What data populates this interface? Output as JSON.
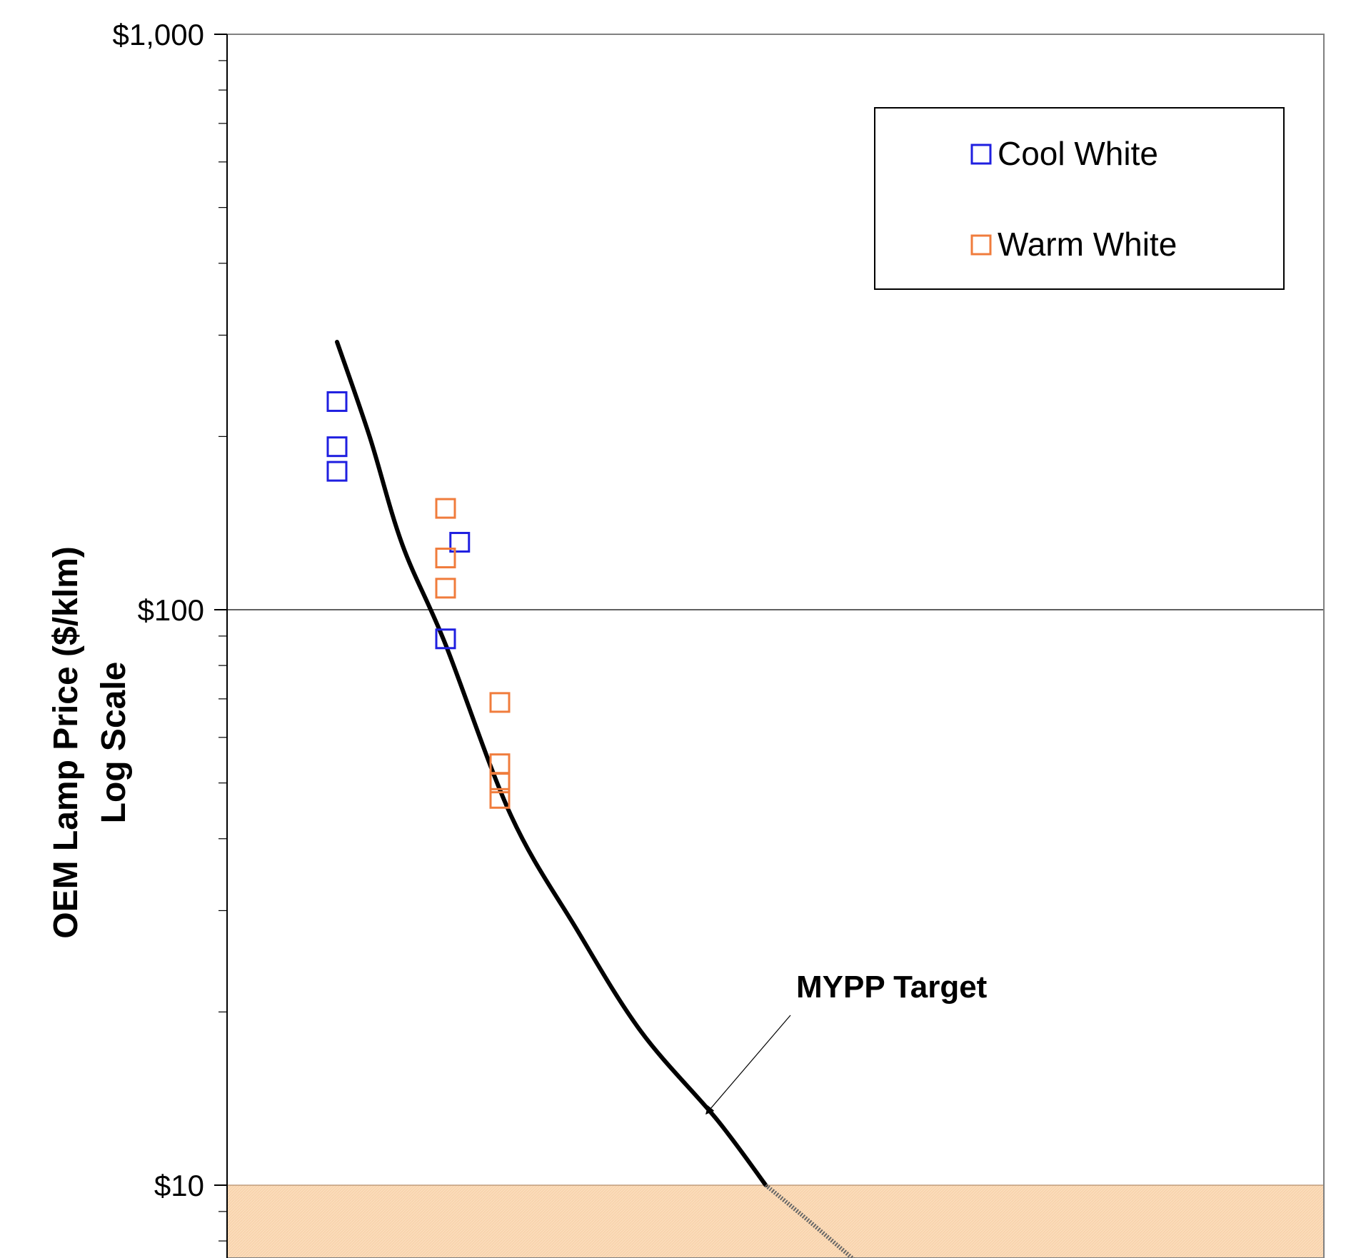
{
  "chart_data": {
    "type": "scatter",
    "title": "",
    "ylabel_lines": [
      "OEM Lamp Price ($/klm)",
      "Log Scale"
    ],
    "y_scale": "log",
    "ylim": [
      5.5,
      1000
    ],
    "y_major_ticks": [
      {
        "value": 1000,
        "label": "$1,000"
      },
      {
        "value": 100,
        "label": "$100"
      },
      {
        "value": 10,
        "label": "$10"
      }
    ],
    "x_domain": [
      0,
      10
    ],
    "grid_lines_at": [
      100
    ],
    "legend": {
      "position": "top-right",
      "items": [
        {
          "label": "Cool White",
          "color": "#1f1fe0"
        },
        {
          "label": "Warm White",
          "color": "#f07c3c"
        }
      ]
    },
    "series": [
      {
        "name": "Cool White",
        "color": "#1f1fe0",
        "marker": "open-square",
        "points": [
          {
            "x": 1.0,
            "y": 230
          },
          {
            "x": 1.0,
            "y": 192
          },
          {
            "x": 1.0,
            "y": 174
          },
          {
            "x": 2.13,
            "y": 131
          },
          {
            "x": 2.0,
            "y": 89
          }
        ]
      },
      {
        "name": "Warm White",
        "color": "#f07c3c",
        "marker": "open-square",
        "points": [
          {
            "x": 2.0,
            "y": 150
          },
          {
            "x": 2.0,
            "y": 123
          },
          {
            "x": 2.0,
            "y": 109
          },
          {
            "x": 2.5,
            "y": 69
          },
          {
            "x": 2.5,
            "y": 54
          },
          {
            "x": 2.5,
            "y": 50
          },
          {
            "x": 2.5,
            "y": 47
          }
        ]
      }
    ],
    "target_curve": {
      "name": "MYPP Target",
      "color": "#000000",
      "points": [
        {
          "x": 1.0,
          "y": 292
        },
        {
          "x": 1.3,
          "y": 200
        },
        {
          "x": 1.6,
          "y": 130
        },
        {
          "x": 2.0,
          "y": 87
        },
        {
          "x": 2.6,
          "y": 44
        },
        {
          "x": 3.2,
          "y": 28
        },
        {
          "x": 3.8,
          "y": 18.5
        },
        {
          "x": 4.5,
          "y": 13
        },
        {
          "x": 4.95,
          "y": 10
        }
      ],
      "extension_points": [
        {
          "x": 4.95,
          "y": 10
        },
        {
          "x": 5.4,
          "y": 8.5
        },
        {
          "x": 6.2,
          "y": 6.3
        }
      ]
    },
    "shaded_region": {
      "y_from": 5.5,
      "y_to": 10,
      "color": "#fbdcba"
    },
    "annotations": [
      {
        "text": "MYPP Target",
        "target_x": 4.4,
        "target_y": 13.3
      }
    ]
  }
}
